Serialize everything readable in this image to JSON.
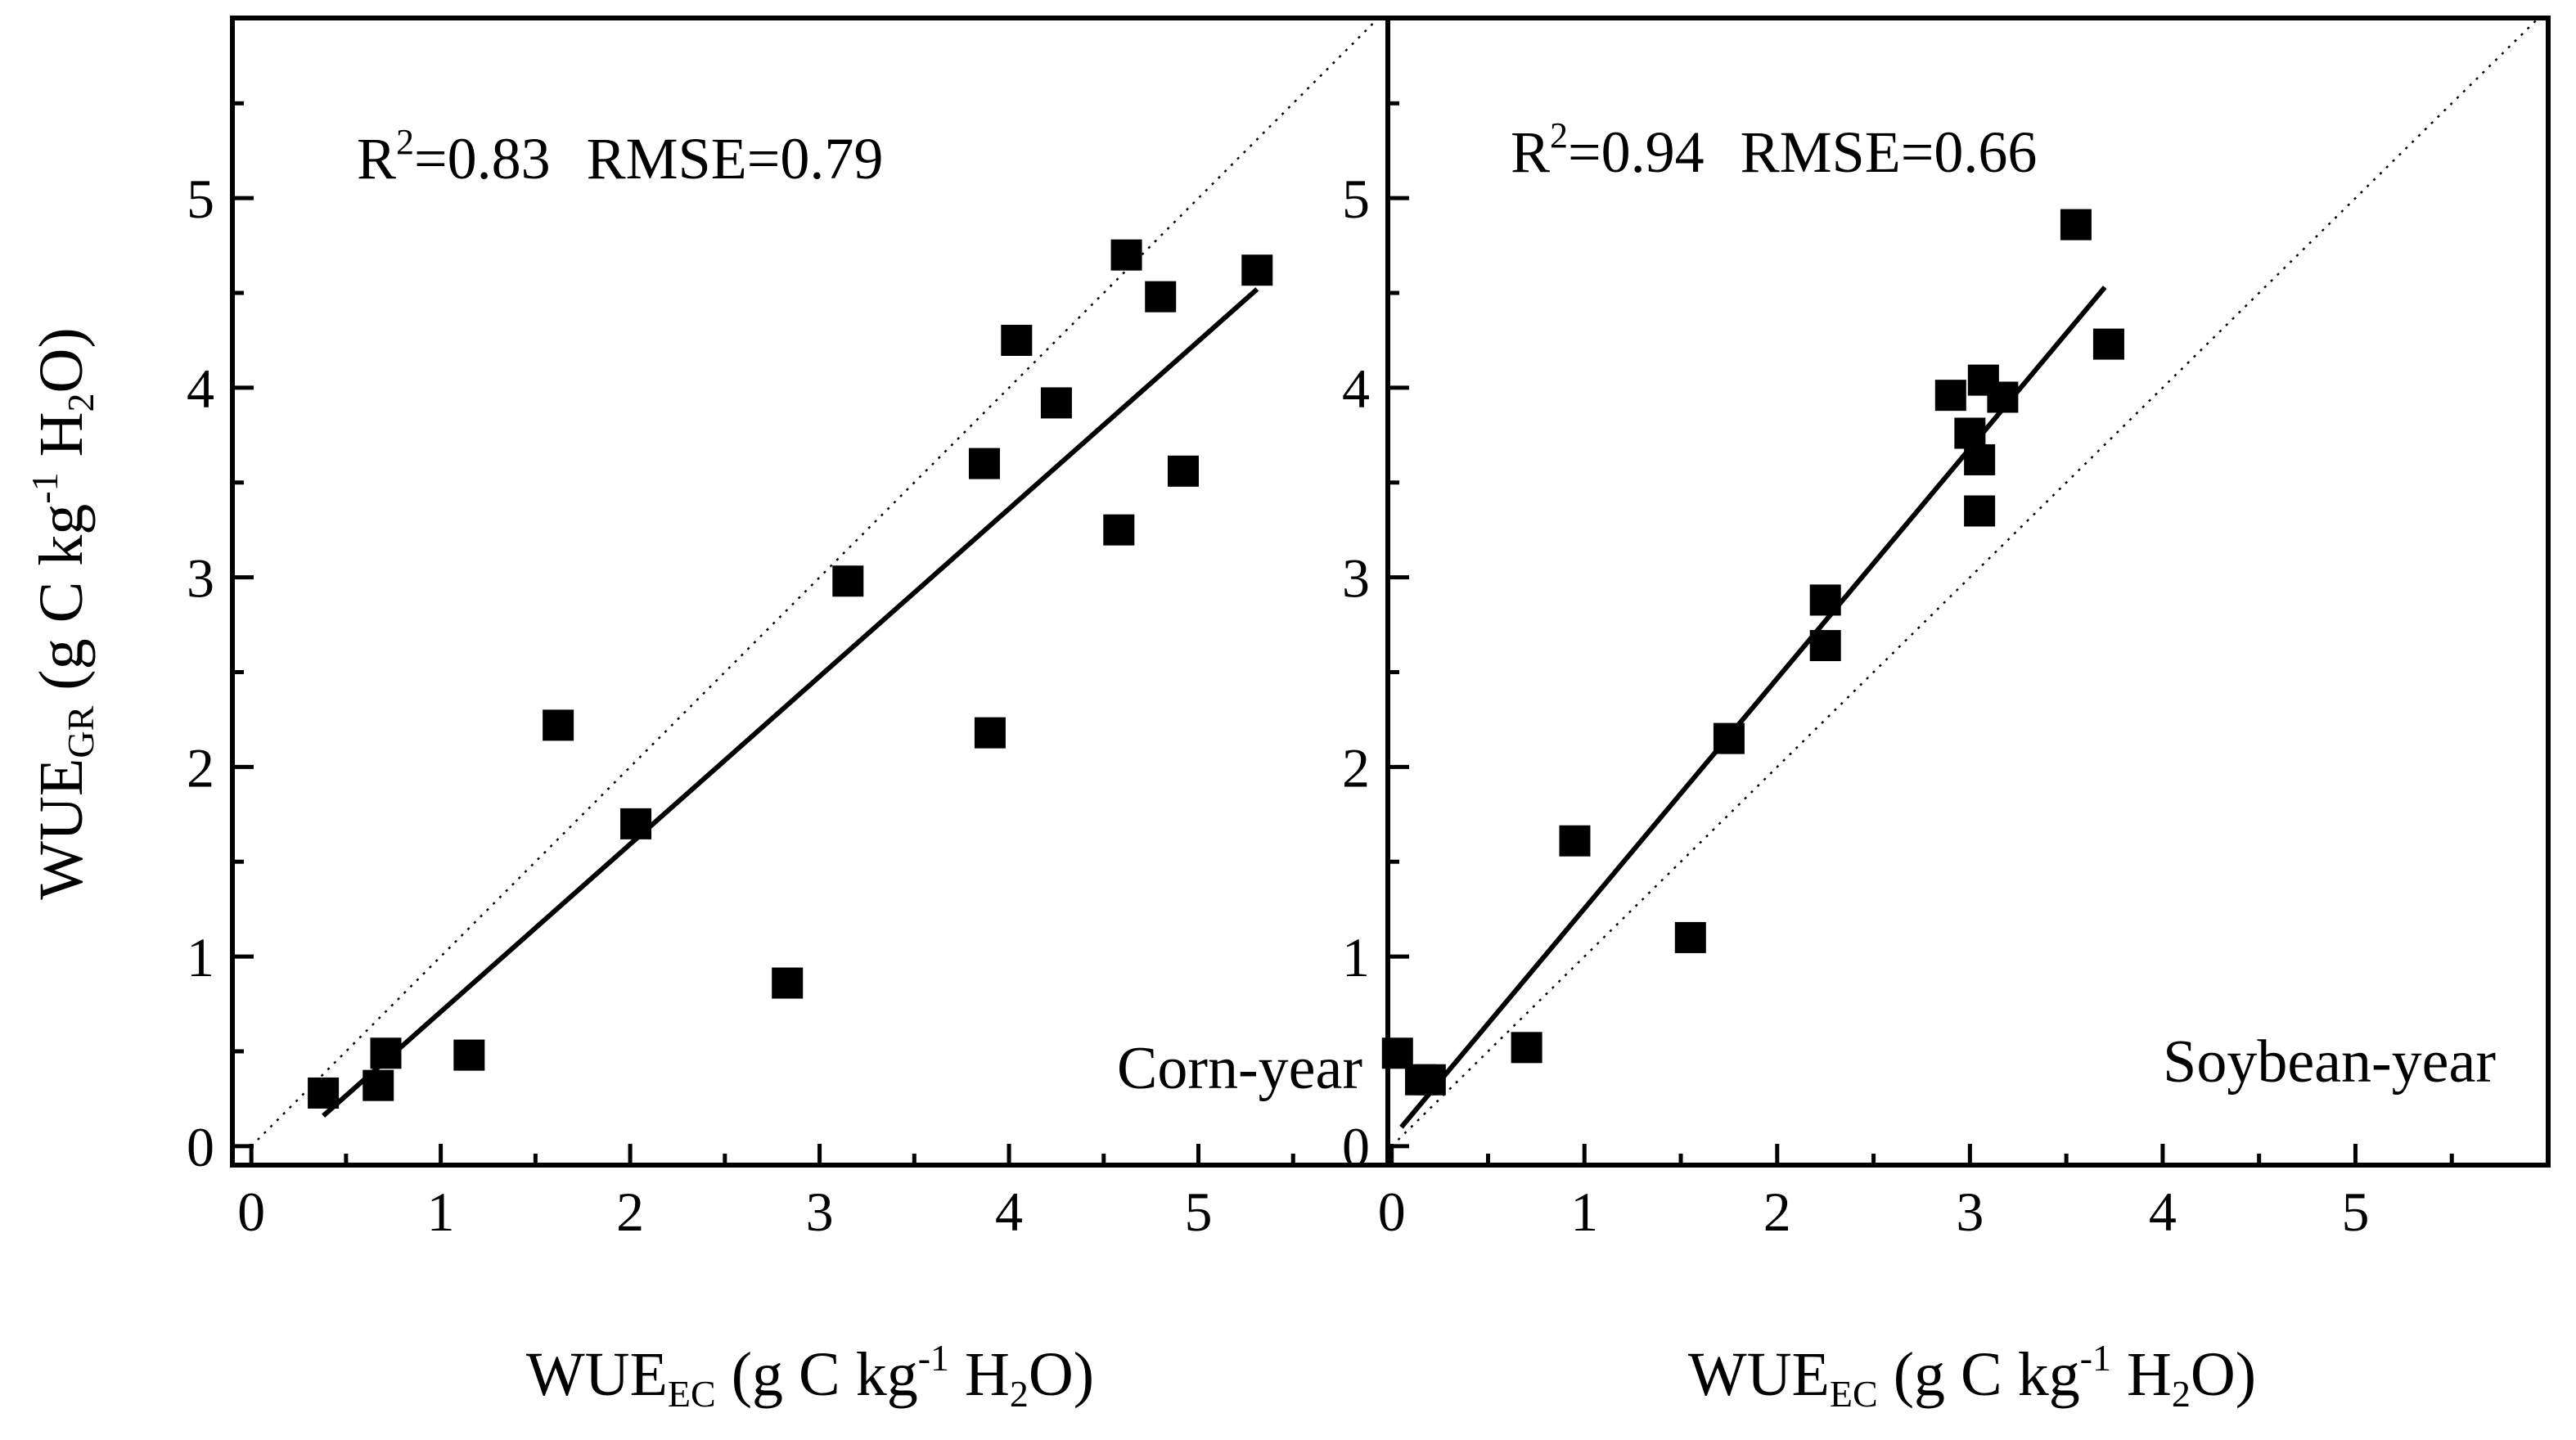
{
  "y_label": {
    "main": "WUE",
    "sub": "GR",
    "unit_pre": " (g C kg",
    "sup": "-1",
    "unit_mid": " H",
    "sub2": "2",
    "unit_post": "O)"
  },
  "x_label": {
    "main": "WUE",
    "sub": "EC",
    "unit_pre": " (g C kg",
    "sup": "-1",
    "unit_mid": " H",
    "sub2": "2",
    "unit_post": "O)"
  },
  "chart_data": [
    {
      "type": "scatter",
      "panel": "Corn-year",
      "stats": {
        "r2_label": "R",
        "r2_sup": "2",
        "r2_value": "=0.83",
        "rmse": "RMSE=0.79"
      },
      "xlim": [
        -0.1,
        6.0
      ],
      "ylim": [
        -0.1,
        5.95
      ],
      "x_ticks": [
        "0",
        "1",
        "2",
        "3",
        "4",
        "5"
      ],
      "y_ticks": [
        "0",
        "1",
        "2",
        "3",
        "4",
        "5"
      ],
      "x": [
        0.38,
        0.67,
        0.71,
        1.15,
        1.62,
        2.03,
        2.83,
        3.15,
        3.87,
        3.9,
        4.04,
        4.25,
        4.58,
        4.62,
        4.8,
        4.92,
        5.31
      ],
      "y": [
        0.28,
        0.32,
        0.49,
        0.48,
        2.22,
        1.7,
        0.86,
        2.98,
        3.6,
        2.18,
        4.25,
        3.92,
        3.25,
        4.7,
        4.48,
        3.56,
        4.62
      ],
      "fit_line": {
        "x": [
          0.38,
          5.31
        ],
        "y": [
          0.16,
          4.52
        ]
      },
      "one_to_one": true,
      "grid": false
    },
    {
      "type": "scatter",
      "panel": "Soybean-year",
      "stats": {
        "r2_label": "R",
        "r2_sup": "2",
        "r2_value": "=0.94",
        "rmse": "RMSE=0.66"
      },
      "xlim": [
        -0.02,
        6.0
      ],
      "ylim": [
        -0.1,
        5.95
      ],
      "x_ticks": [
        "0",
        "1",
        "2",
        "3",
        "4",
        "5"
      ],
      "y_ticks": [
        "0",
        "1",
        "2",
        "3",
        "4",
        "5"
      ],
      "x": [
        0.03,
        0.15,
        0.2,
        0.7,
        0.95,
        1.55,
        1.75,
        2.25,
        2.25,
        2.9,
        3.0,
        3.05,
        3.05,
        3.07,
        3.17,
        3.55,
        3.72
      ],
      "y": [
        0.49,
        0.35,
        0.35,
        0.52,
        1.61,
        1.1,
        2.15,
        2.88,
        2.64,
        3.96,
        3.76,
        3.35,
        3.62,
        4.04,
        3.95,
        4.86,
        4.23
      ],
      "fit_line": {
        "x": [
          0.05,
          3.7
        ],
        "y": [
          0.1,
          4.53
        ]
      },
      "one_to_one": true,
      "grid": false
    }
  ]
}
